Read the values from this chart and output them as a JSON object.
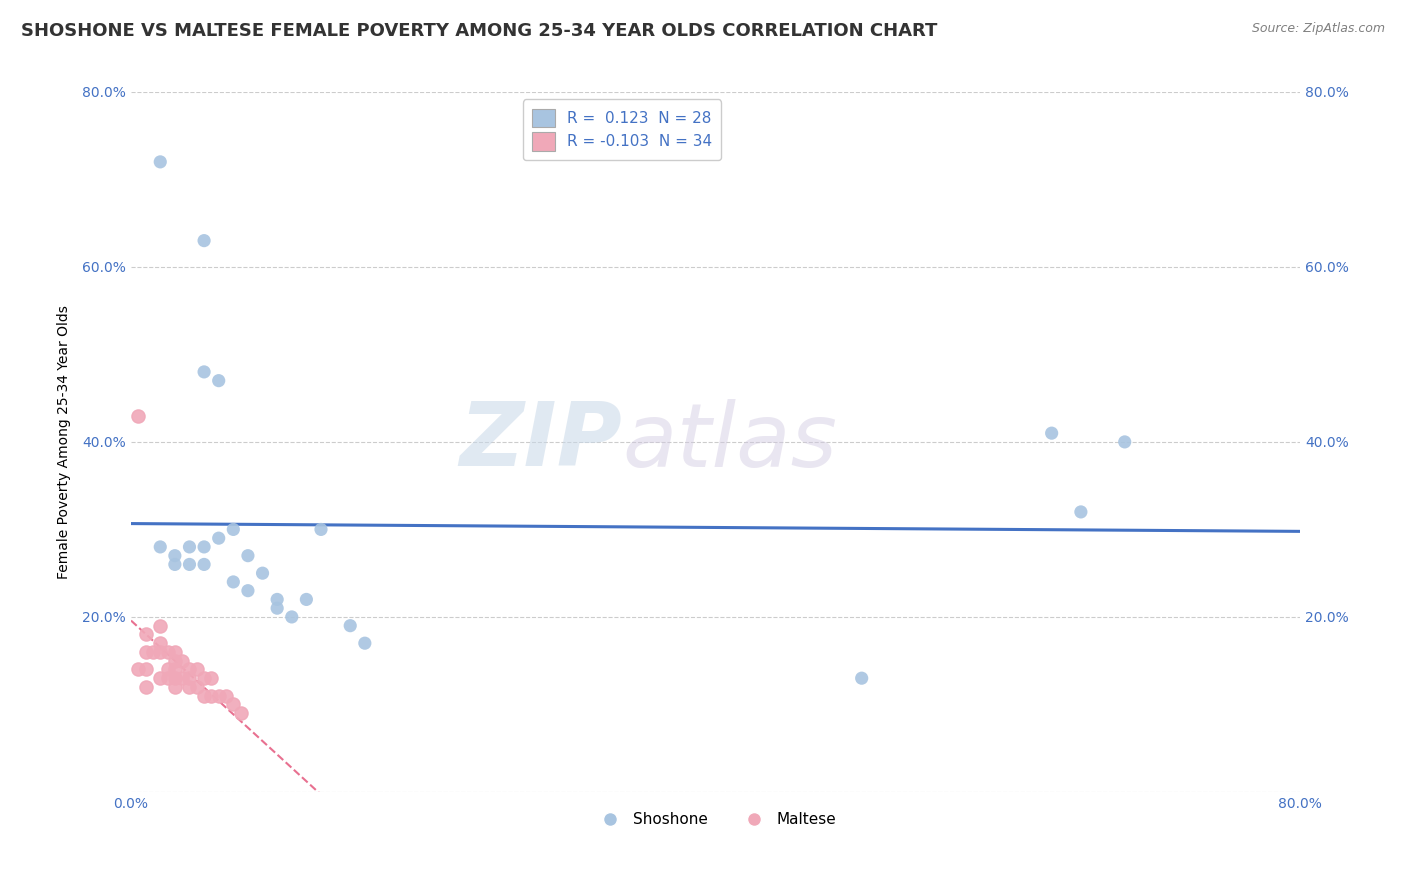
{
  "title": "SHOSHONE VS MALTESE FEMALE POVERTY AMONG 25-34 YEAR OLDS CORRELATION CHART",
  "source": "Source: ZipAtlas.com",
  "ylabel": "Female Poverty Among 25-34 Year Olds",
  "xlabel": "",
  "xlim": [
    0.0,
    0.8
  ],
  "ylim": [
    0.0,
    0.8
  ],
  "xticks": [
    0.0,
    0.2,
    0.4,
    0.6,
    0.8
  ],
  "yticks": [
    0.0,
    0.2,
    0.4,
    0.6,
    0.8
  ],
  "xticklabels": [
    "0.0%",
    "",
    "",
    "",
    "80.0%"
  ],
  "yticklabels": [
    "",
    "20.0%",
    "40.0%",
    "60.0%",
    "80.0%"
  ],
  "right_yticklabels": [
    "",
    "20.0%",
    "40.0%",
    "60.0%",
    "80.0%"
  ],
  "grid_color": "#cccccc",
  "background_color": "#ffffff",
  "shoshone_color": "#a8c4e0",
  "maltese_color": "#f0a8b8",
  "shoshone_line_color": "#4472c4",
  "maltese_line_color": "#e87090",
  "legend_R_shoshone": "R =  0.123  N = 28",
  "legend_R_maltese": "R = -0.103  N = 34",
  "shoshone_x": [
    0.02,
    0.05,
    0.02,
    0.03,
    0.05,
    0.06,
    0.03,
    0.04,
    0.04,
    0.05,
    0.05,
    0.06,
    0.07,
    0.08,
    0.07,
    0.08,
    0.09,
    0.1,
    0.1,
    0.11,
    0.12,
    0.13,
    0.15,
    0.16,
    0.5,
    0.63,
    0.65,
    0.68
  ],
  "shoshone_y": [
    0.72,
    0.63,
    0.28,
    0.27,
    0.48,
    0.47,
    0.26,
    0.28,
    0.26,
    0.28,
    0.26,
    0.29,
    0.3,
    0.27,
    0.24,
    0.23,
    0.25,
    0.22,
    0.21,
    0.2,
    0.22,
    0.3,
    0.19,
    0.17,
    0.13,
    0.41,
    0.32,
    0.4
  ],
  "maltese_x": [
    0.005,
    0.005,
    0.01,
    0.01,
    0.01,
    0.01,
    0.015,
    0.02,
    0.02,
    0.02,
    0.02,
    0.025,
    0.025,
    0.025,
    0.03,
    0.03,
    0.03,
    0.03,
    0.03,
    0.035,
    0.035,
    0.04,
    0.04,
    0.04,
    0.045,
    0.045,
    0.05,
    0.05,
    0.055,
    0.055,
    0.06,
    0.065,
    0.07,
    0.075
  ],
  "maltese_y": [
    0.43,
    0.14,
    0.18,
    0.16,
    0.14,
    0.12,
    0.16,
    0.19,
    0.17,
    0.16,
    0.13,
    0.16,
    0.14,
    0.13,
    0.16,
    0.15,
    0.14,
    0.13,
    0.12,
    0.15,
    0.13,
    0.14,
    0.13,
    0.12,
    0.14,
    0.12,
    0.13,
    0.11,
    0.13,
    0.11,
    0.11,
    0.11,
    0.1,
    0.09
  ],
  "watermark_zip": "ZIP",
  "watermark_atlas": "atlas",
  "title_fontsize": 13,
  "axis_fontsize": 10,
  "tick_fontsize": 10,
  "legend_fontsize": 11
}
